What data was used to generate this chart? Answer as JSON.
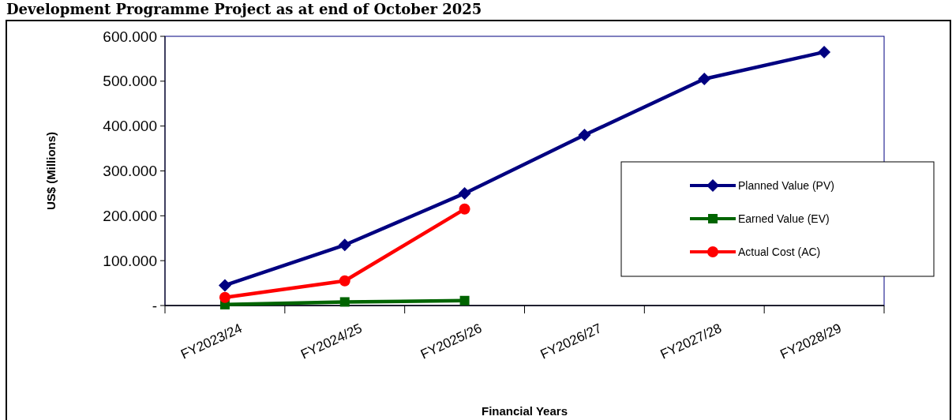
{
  "chart_data": {
    "type": "line",
    "title": "Development Programme Project as at end of October 2025",
    "xlabel": "Financial Years",
    "ylabel": "US$ (Millions)",
    "categories": [
      "FY2023/24",
      "FY2024/25",
      "FY2025/26",
      "FY2026/27",
      "FY2027/28",
      "FY2028/29"
    ],
    "series": [
      {
        "name": "Planned Value (PV)",
        "color": "#000080",
        "marker": "diamond",
        "values": [
          45,
          135,
          250,
          380,
          505,
          565
        ]
      },
      {
        "name": "Earned Value (EV)",
        "color": "#006400",
        "marker": "square",
        "values": [
          2,
          8,
          11,
          null,
          null,
          null
        ]
      },
      {
        "name": "Actual Cost (AC)",
        "color": "#ff0000",
        "marker": "circle",
        "values": [
          18,
          55,
          215,
          null,
          null,
          null
        ]
      }
    ],
    "ylim": [
      0,
      600
    ],
    "yticks": [
      {
        "value": 0,
        "label": "-"
      },
      {
        "value": 100,
        "label": "100.000"
      },
      {
        "value": 200,
        "label": "200.000"
      },
      {
        "value": 300,
        "label": "300.000"
      },
      {
        "value": 400,
        "label": "400.000"
      },
      {
        "value": 500,
        "label": "500.000"
      },
      {
        "value": 600,
        "label": "600.000"
      }
    ],
    "grid": false,
    "legend": "right",
    "line_style": "solid"
  }
}
